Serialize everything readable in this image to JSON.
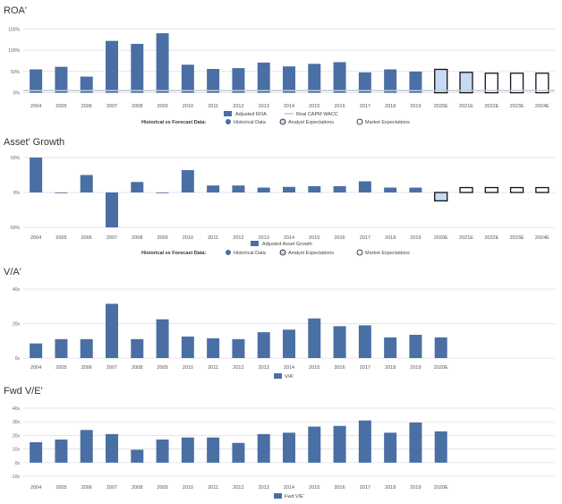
{
  "colors": {
    "bar": "#4a6fa5",
    "historical": "#4a6fa5",
    "analyst": "#c6daf3",
    "market": "#ffffff",
    "outline": "#111111",
    "grid": "#dcdcdc",
    "wacc": "#bcc9db",
    "text": "#333333"
  },
  "legend_common": {
    "prefix": "Historical vs Forecast Data:",
    "historical": "Historical Data",
    "analyst": "Analyst Expectations",
    "market": "Market Expectations"
  },
  "chart_data": [
    {
      "type": "bar",
      "title": "ROA'",
      "categories": [
        "2004",
        "2005",
        "2006",
        "2007",
        "2008",
        "2009",
        "2010",
        "2011",
        "2012",
        "2013",
        "2014",
        "2015",
        "2016",
        "2017",
        "2018",
        "2019",
        "2020E",
        "2021E",
        "2022E",
        "2023E",
        "2024E"
      ],
      "values": [
        55,
        61,
        38,
        122,
        115,
        140,
        66,
        56,
        58,
        71,
        62,
        68,
        72,
        48,
        55,
        50,
        55,
        48,
        46,
        46,
        46
      ],
      "bar_kinds": [
        "h",
        "h",
        "h",
        "h",
        "h",
        "h",
        "h",
        "h",
        "h",
        "h",
        "h",
        "h",
        "h",
        "h",
        "h",
        "h",
        "a",
        "a",
        "m",
        "m",
        "m"
      ],
      "y_ticks": [
        0,
        50,
        100,
        150
      ],
      "y_tick_labels": [
        "0%",
        "50%",
        "100%",
        "150%"
      ],
      "ylim": [
        -5,
        155
      ],
      "wacc_value": 5,
      "legend": {
        "series": "Adjusted ROA",
        "wacc": "Real CAPM WACC"
      }
    },
    {
      "type": "bar",
      "title": "Asset' Growth",
      "categories": [
        "2004",
        "2005",
        "2006",
        "2007",
        "2008",
        "2009",
        "2010",
        "2011",
        "2012",
        "2013",
        "2014",
        "2015",
        "2016",
        "2017",
        "2018",
        "2019",
        "2020E",
        "2021E",
        "2022E",
        "2023E",
        "2024E"
      ],
      "values": [
        50,
        -1,
        25,
        -50,
        15,
        -1,
        32,
        10,
        10,
        7,
        8,
        9,
        9,
        16,
        7,
        7,
        -12,
        7,
        7,
        7,
        7
      ],
      "bar_kinds": [
        "h",
        "h",
        "h",
        "h",
        "h",
        "h",
        "h",
        "h",
        "h",
        "h",
        "h",
        "h",
        "h",
        "h",
        "h",
        "h",
        "a",
        "m",
        "m",
        "m",
        "m"
      ],
      "y_ticks": [
        -50,
        0,
        50
      ],
      "y_tick_labels": [
        "-50%",
        "0%",
        "50%"
      ],
      "ylim": [
        -50,
        50
      ],
      "legend": {
        "series": "Adjusted Asset Growth"
      }
    },
    {
      "type": "bar",
      "title": "V/A'",
      "categories": [
        "2004",
        "2005",
        "2006",
        "2007",
        "2008",
        "2009",
        "2010",
        "2011",
        "2012",
        "2013",
        "2014",
        "2015",
        "2016",
        "2017",
        "2018",
        "2019",
        "2020E"
      ],
      "values": [
        8.5,
        11,
        11,
        31.5,
        11,
        22.5,
        12.5,
        11.5,
        11,
        15,
        16.5,
        23,
        18.5,
        19,
        12,
        13.5,
        12
      ],
      "y_ticks": [
        0,
        20,
        40
      ],
      "y_tick_labels": [
        "0x",
        "20x",
        "40x"
      ],
      "ylim": [
        0,
        40
      ],
      "legend": {
        "series": "V/A'"
      }
    },
    {
      "type": "bar",
      "title": "Fwd V/E'",
      "categories": [
        "2004",
        "2005",
        "2006",
        "2007",
        "2008",
        "2009",
        "2010",
        "2011",
        "2012",
        "2013",
        "2014",
        "2015",
        "2016",
        "2017",
        "2018",
        "2019",
        "2020E"
      ],
      "values": [
        15,
        17,
        24,
        21,
        9.5,
        17,
        18.5,
        18.5,
        14.5,
        21,
        22,
        26.5,
        27,
        31,
        22,
        29.5,
        23
      ],
      "y_ticks": [
        -10,
        0,
        10,
        20,
        30,
        40
      ],
      "y_tick_labels": [
        "-10x",
        "0x",
        "10x",
        "20x",
        "30x",
        "40x"
      ],
      "ylim": [
        -10,
        40
      ],
      "legend": {
        "series": "Fwd V/E'"
      }
    }
  ]
}
